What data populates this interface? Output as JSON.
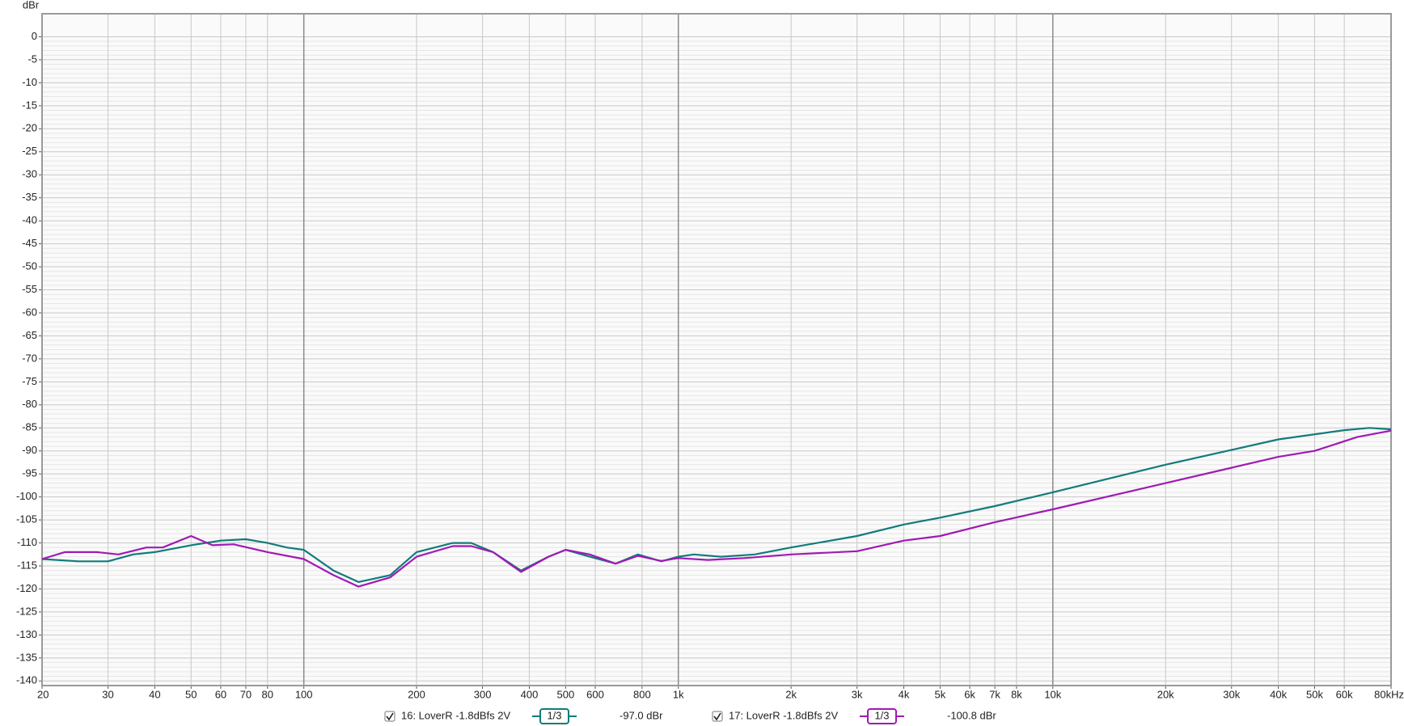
{
  "chart_data": {
    "type": "line",
    "y_label": "dBr",
    "log_x": true,
    "grid": true,
    "xlim": [
      20,
      80000
    ],
    "ylim": [
      -141,
      5
    ],
    "xticks": [
      20,
      30,
      40,
      50,
      60,
      70,
      80,
      100,
      200,
      300,
      400,
      500,
      600,
      800,
      {
        "value": 1000,
        "label": "1k"
      },
      {
        "value": 2000,
        "label": "2k"
      },
      {
        "value": 3000,
        "label": "3k"
      },
      {
        "value": 4000,
        "label": "4k"
      },
      {
        "value": 5000,
        "label": "5k"
      },
      {
        "value": 6000,
        "label": "6k"
      },
      {
        "value": 7000,
        "label": "7k"
      },
      {
        "value": 8000,
        "label": "8k"
      },
      {
        "value": 10000,
        "label": "10k"
      },
      {
        "value": 20000,
        "label": "20k"
      },
      {
        "value": 30000,
        "label": "30k"
      },
      {
        "value": 40000,
        "label": "40k"
      },
      {
        "value": 50000,
        "label": "50k"
      },
      {
        "value": 60000,
        "label": "60k"
      },
      {
        "value": 80000,
        "label": "80kHz"
      }
    ],
    "yticks": [
      0,
      -5,
      -10,
      -15,
      -20,
      -25,
      -30,
      -35,
      -40,
      -45,
      -50,
      -55,
      -60,
      -65,
      -70,
      -75,
      -80,
      -85,
      -90,
      -95,
      -100,
      -105,
      -110,
      -115,
      -120,
      -125,
      -130,
      -135,
      -140
    ],
    "series": [
      {
        "name": "16: LoverR -1.8dBfs 2V",
        "color": "#127b7b",
        "smoothing": "1/3",
        "readout": "-97.0 dBr",
        "x": [
          20,
          25,
          30,
          35,
          40,
          50,
          60,
          70,
          80,
          90,
          100,
          120,
          140,
          170,
          200,
          250,
          280,
          320,
          380,
          450,
          500,
          580,
          680,
          780,
          900,
          1000,
          1100,
          1300,
          1600,
          2000,
          3000,
          4000,
          5000,
          7000,
          10000,
          20000,
          40000,
          60000,
          70000,
          80000
        ],
        "values": [
          -113.5,
          -114,
          -114,
          -112.5,
          -112,
          -110.5,
          -109.5,
          -109.2,
          -110,
          -111,
          -111.5,
          -116,
          -118.5,
          -117,
          -112,
          -110,
          -110,
          -112,
          -116,
          -113,
          -111.5,
          -113,
          -114.5,
          -112.5,
          -114,
          -113,
          -112.5,
          -113,
          -112.5,
          -111,
          -108.5,
          -106,
          -104.5,
          -102,
          -99,
          -93,
          -87.5,
          -85.5,
          -85,
          -85.3
        ]
      },
      {
        "name": "17: LoverR -1.8dBfs 2V",
        "color": "#a01ab4",
        "smoothing": "1/3",
        "readout": "-100.8 dBr",
        "x": [
          20,
          23,
          28,
          32,
          38,
          42,
          50,
          57,
          65,
          80,
          100,
          120,
          140,
          170,
          200,
          250,
          280,
          320,
          380,
          450,
          500,
          580,
          680,
          780,
          900,
          1000,
          1200,
          1500,
          2000,
          3000,
          4000,
          5000,
          7000,
          10000,
          20000,
          40000,
          50000,
          65000,
          80000
        ],
        "values": [
          -113.5,
          -112,
          -112,
          -112.5,
          -111,
          -111,
          -108.5,
          -110.5,
          -110.3,
          -112,
          -113.5,
          -117,
          -119.5,
          -117.5,
          -113,
          -110.7,
          -110.7,
          -112,
          -116.3,
          -113,
          -111.5,
          -112.5,
          -114.5,
          -112.8,
          -113.9,
          -113.3,
          -113.7,
          -113.3,
          -112.5,
          -111.8,
          -109.5,
          -108.5,
          -105.5,
          -102.7,
          -97,
          -91.3,
          -90,
          -87,
          -85.6
        ]
      }
    ]
  }
}
